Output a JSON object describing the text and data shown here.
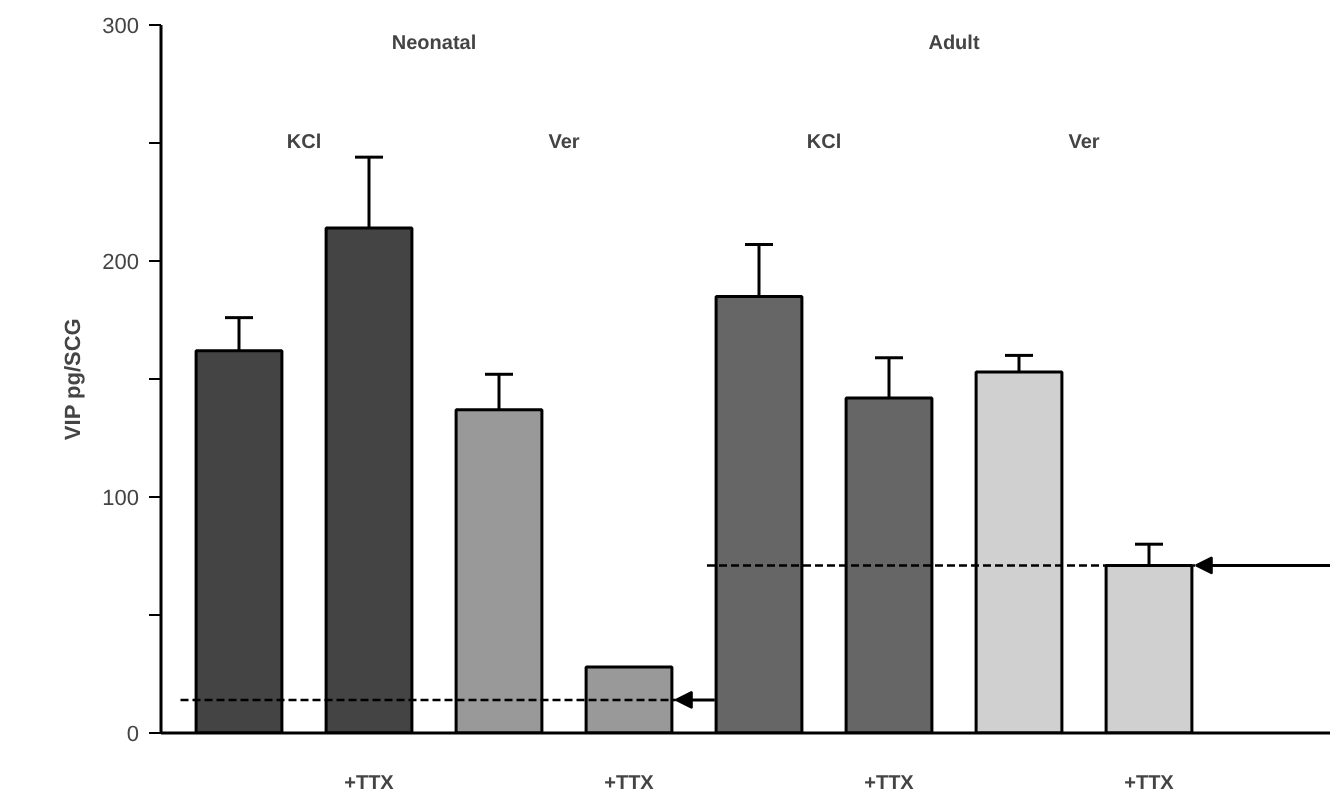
{
  "chart_data": {
    "type": "bar",
    "ylabel": "VIP pg/SCG",
    "categories": [
      null,
      "+TTX",
      null,
      "+TTX",
      null,
      "+TTX",
      null,
      "+TTX"
    ],
    "values": [
      162,
      214,
      137,
      28,
      185,
      142,
      153,
      71
    ],
    "errors": [
      14,
      30,
      15,
      null,
      22,
      17,
      7,
      9
    ],
    "colors": [
      "#444444",
      "#444444",
      "#999999",
      "#999999",
      "#666666",
      "#666666",
      "#d0d0d0",
      "#d0d0d0"
    ],
    "ylim": [
      0,
      300
    ],
    "yticks": [
      0,
      {
        "value": 50,
        "label": null
      },
      100,
      {
        "value": 150,
        "label": null
      },
      200,
      {
        "value": 250,
        "label": null
      },
      300
    ],
    "ref_lines": [
      {
        "axis": "y",
        "value": 14,
        "color": "#000000",
        "line_style": "dashed"
      },
      {
        "axis": "y",
        "value": 71,
        "color": "#000000",
        "line_style": "dashed"
      }
    ],
    "annotations": [
      "Neonatal",
      "Adult",
      "KCl",
      "Ver",
      "KCl",
      "Ver"
    ]
  }
}
